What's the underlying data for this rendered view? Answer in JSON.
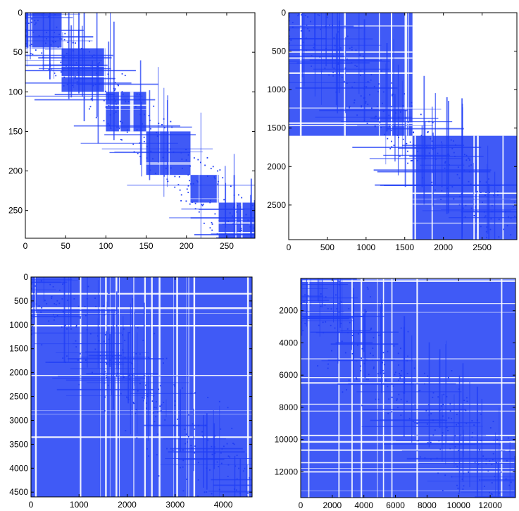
{
  "chart_data": [
    {
      "type": "heatmap",
      "title": "",
      "xlabel": "",
      "ylabel": "",
      "n": 285,
      "xlim": [
        0,
        285
      ],
      "ylim": [
        0,
        285
      ],
      "y_axis_direction": "down",
      "xticks": [
        0,
        50,
        100,
        150,
        200,
        250
      ],
      "yticks": [
        0,
        50,
        100,
        150,
        200,
        250
      ],
      "xtick_labels": [
        "0",
        "50",
        "100",
        "150",
        "200",
        "250"
      ],
      "ytick_labels": [
        "0",
        "50",
        "100",
        "150",
        "200",
        "250"
      ],
      "color": "#1f3df5",
      "description_of_values": "sparsity pattern of a symmetric sparse matrix; nonzeros clustered in diagonal blocks",
      "diagonal_blocks": [
        [
          0,
          45
        ],
        [
          45,
          100
        ],
        [
          100,
          150
        ],
        [
          150,
          205
        ],
        [
          205,
          240
        ],
        [
          240,
          285
        ]
      ]
    },
    {
      "type": "heatmap",
      "title": "",
      "xlabel": "",
      "ylabel": "",
      "n": 2950,
      "xlim": [
        0,
        2950
      ],
      "ylim": [
        0,
        2950
      ],
      "y_axis_direction": "down",
      "xticks": [
        0,
        500,
        1000,
        1500,
        2000,
        2500
      ],
      "yticks": [
        0,
        500,
        1000,
        1500,
        2000,
        2500
      ],
      "xtick_labels": [
        "0",
        "500",
        "1000",
        "1500",
        "2000",
        "2500"
      ],
      "ytick_labels": [
        "0",
        "500",
        "1000",
        "1500",
        "2000",
        "2500"
      ],
      "color": "#1f3df5",
      "description_of_values": "sparsity pattern of a symmetric sparse matrix; dense diagonal blocks",
      "diagonal_blocks": [
        [
          0,
          1600
        ],
        [
          1600,
          2950
        ]
      ]
    },
    {
      "type": "heatmap",
      "title": "",
      "xlabel": "",
      "ylabel": "",
      "n": 4600,
      "xlim": [
        0,
        4600
      ],
      "ylim": [
        0,
        4600
      ],
      "y_axis_direction": "down",
      "xticks": [
        0,
        1000,
        2000,
        3000,
        4000
      ],
      "yticks": [
        0,
        500,
        1000,
        1500,
        2000,
        2500,
        3000,
        3500,
        4000,
        4500
      ],
      "xtick_labels": [
        "0",
        "1000",
        "2000",
        "3000",
        "4000"
      ],
      "ytick_labels": [
        "0",
        "500",
        "1000",
        "1500",
        "2000",
        "2500",
        "3000",
        "3500",
        "4000",
        "4500"
      ],
      "color": "#1f3df5",
      "description_of_values": "sparsity pattern of a symmetric sparse matrix; nonzeros fill the lower-right region",
      "diagonal_blocks": [
        [
          0,
          4600
        ]
      ]
    },
    {
      "type": "heatmap",
      "title": "",
      "xlabel": "",
      "ylabel": "",
      "n": 13600,
      "xlim": [
        0,
        13600
      ],
      "ylim": [
        0,
        13600
      ],
      "y_axis_direction": "down",
      "xticks": [
        0,
        2000,
        4000,
        6000,
        8000,
        10000,
        12000
      ],
      "yticks": [
        2000,
        4000,
        6000,
        8000,
        10000,
        12000
      ],
      "xtick_labels": [
        "0",
        "2000",
        "4000",
        "6000",
        "8000",
        "10000",
        "12000"
      ],
      "ytick_labels": [
        "2000",
        "4000",
        "6000",
        "8000",
        "10000",
        "12000"
      ],
      "color": "#1f3df5",
      "description_of_values": "sparsity pattern of a symmetric sparse matrix; nonzeros spread across most of the matrix",
      "diagonal_blocks": [
        [
          0,
          13600
        ]
      ]
    }
  ]
}
